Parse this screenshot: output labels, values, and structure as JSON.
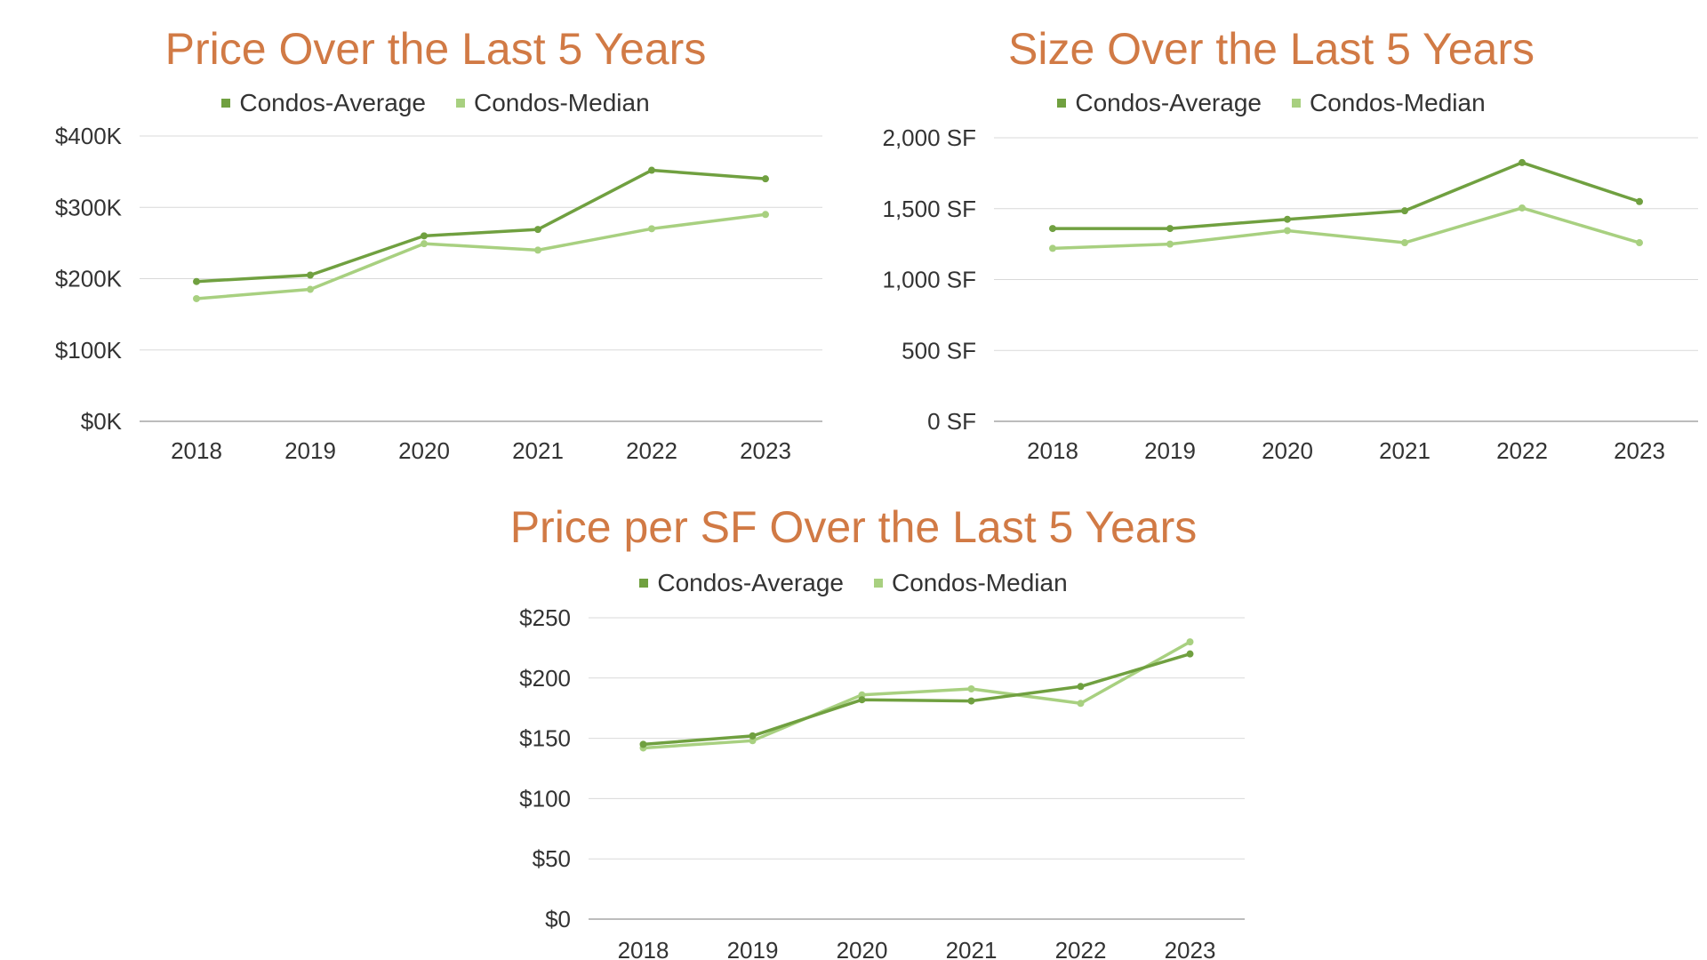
{
  "colors": {
    "title": "#d17a45",
    "average": "#70a040",
    "median": "#a8d080",
    "grid": "#d9d9d9",
    "axis": "#a6a6a6"
  },
  "chart_data": [
    {
      "type": "line",
      "title": "Price Over the Last 5 Years",
      "x": [
        "2018",
        "2019",
        "2020",
        "2021",
        "2022",
        "2023"
      ],
      "ylim": [
        0,
        400000
      ],
      "yticks": [
        0,
        100000,
        200000,
        300000,
        400000
      ],
      "ytick_labels": [
        "$0K",
        "$100K",
        "$200K",
        "$300K",
        "$400K"
      ],
      "grid": true,
      "legend": "top",
      "series": [
        {
          "name": "Condos-Average",
          "values": [
            196000,
            205000,
            260000,
            269000,
            352000,
            340000
          ]
        },
        {
          "name": "Condos-Median",
          "values": [
            172000,
            185000,
            249000,
            240000,
            270000,
            290000
          ]
        }
      ]
    },
    {
      "type": "line",
      "title": "Size Over the Last 5 Years",
      "x": [
        "2018",
        "2019",
        "2020",
        "2021",
        "2022",
        "2023"
      ],
      "ylim": [
        0,
        2000
      ],
      "yticks": [
        0,
        500,
        1000,
        1500,
        2000
      ],
      "ytick_labels": [
        "0 SF",
        "500 SF",
        "1,000 SF",
        "1,500 SF",
        "2,000 SF"
      ],
      "grid": true,
      "legend": "top",
      "series": [
        {
          "name": "Condos-Average",
          "values": [
            1360,
            1360,
            1425,
            1485,
            1825,
            1550
          ]
        },
        {
          "name": "Condos-Median",
          "values": [
            1220,
            1250,
            1345,
            1260,
            1505,
            1260
          ]
        }
      ]
    },
    {
      "type": "line",
      "title": "Price per SF Over the Last 5 Years",
      "x": [
        "2018",
        "2019",
        "2020",
        "2021",
        "2022",
        "2023"
      ],
      "ylim": [
        0,
        250
      ],
      "yticks": [
        0,
        50,
        100,
        150,
        200,
        250
      ],
      "ytick_labels": [
        "$0",
        "$50",
        "$100",
        "$150",
        "$200",
        "$250"
      ],
      "grid": true,
      "legend": "top",
      "series": [
        {
          "name": "Condos-Average",
          "values": [
            145,
            152,
            182,
            181,
            193,
            220
          ]
        },
        {
          "name": "Condos-Median",
          "values": [
            142,
            148,
            186,
            191,
            179,
            230
          ]
        }
      ]
    }
  ]
}
